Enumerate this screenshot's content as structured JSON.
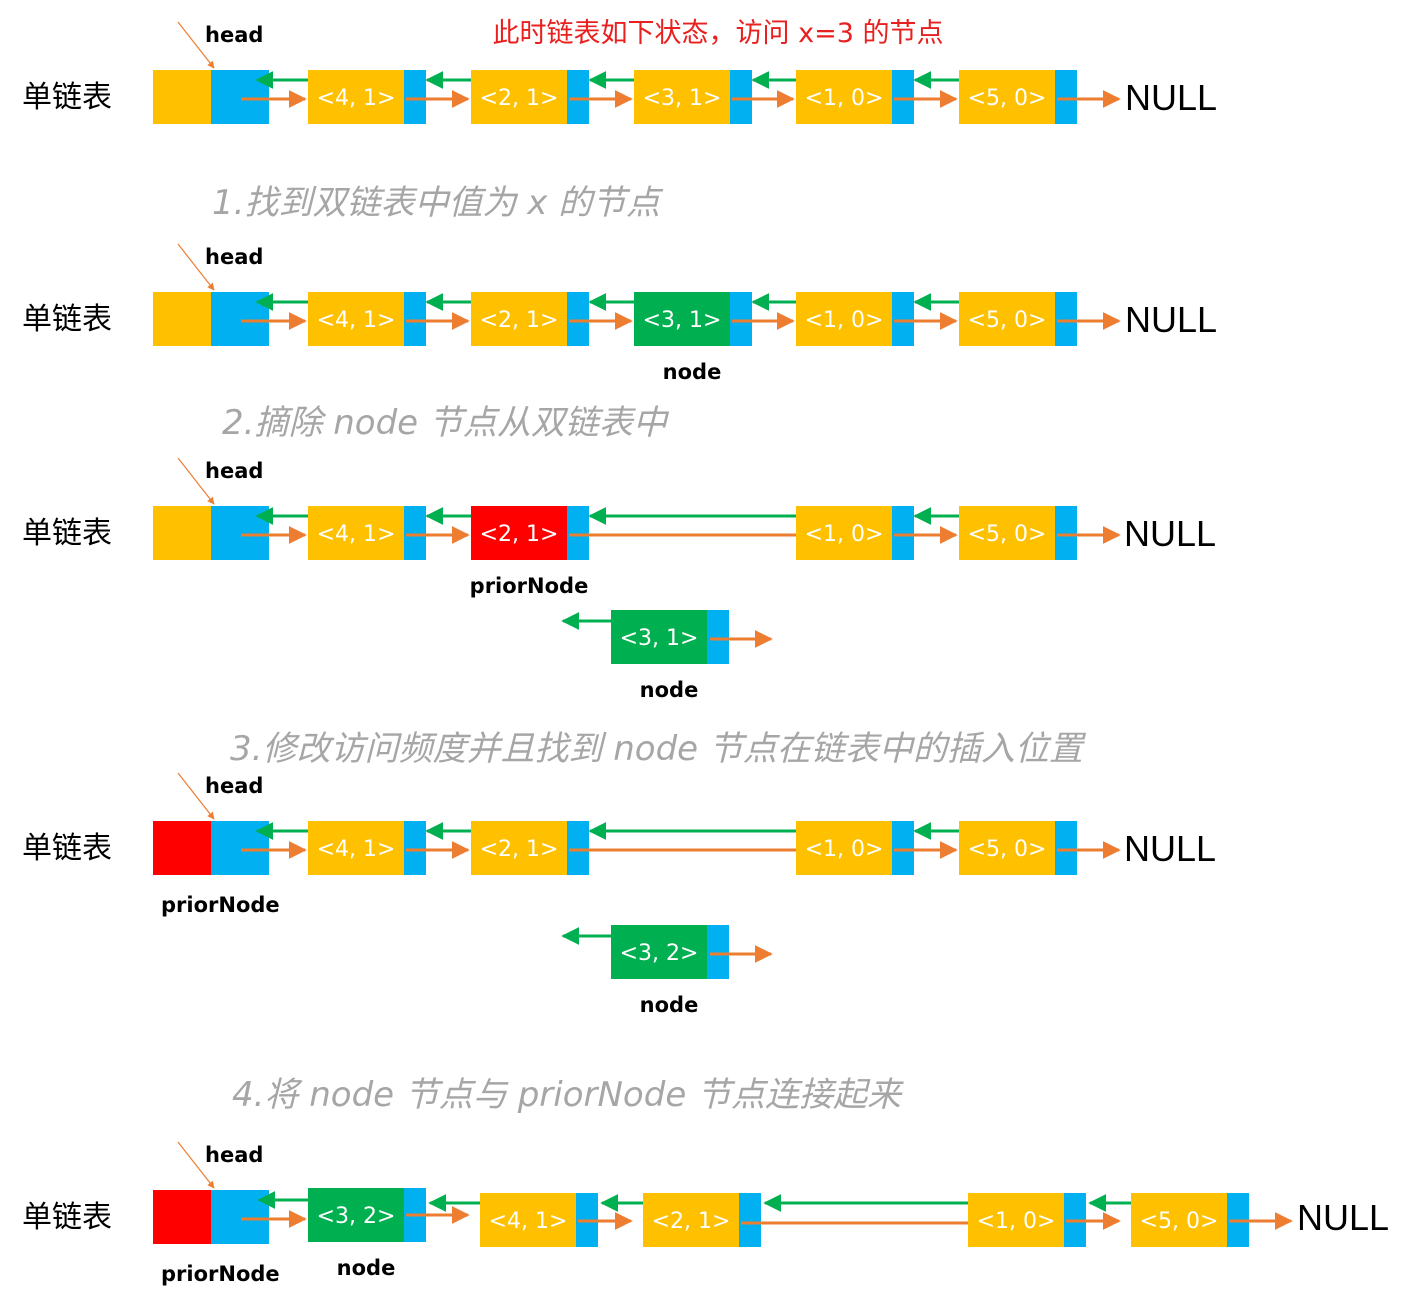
{
  "title": "此时链表如下状态，访问 x=3 的节点",
  "colors": {
    "yellow": "#ffc000",
    "blue": "#00b0f0",
    "green": "#00b050",
    "red": "#ff0000",
    "arrow_next": "#ed7d31",
    "arrow_prev": "#00b050",
    "title": "#e8201f",
    "step": "#a6a6a6"
  },
  "list_label": "单链表",
  "head_label": "head",
  "null_label": "NULL",
  "steps": [
    "1.找到双链表中值为 x 的节点",
    "2.摘除 node 节点从双链表中",
    "3.修改访问频度并且找到 node 节点在链表中的插入位置",
    "4.将 node 节点与 priorNode 节点连接起来"
  ],
  "rows": [
    {
      "nodes": [
        {
          "text": "<4, 1>",
          "color": "yellow"
        },
        {
          "text": "<2, 1>",
          "color": "yellow"
        },
        {
          "text": "<3, 1>",
          "color": "yellow"
        },
        {
          "text": "<1, 0>",
          "color": "yellow"
        },
        {
          "text": "<5, 0>",
          "color": "yellow"
        }
      ]
    },
    {
      "nodes": [
        {
          "text": "<4, 1>",
          "color": "yellow"
        },
        {
          "text": "<2, 1>",
          "color": "yellow"
        },
        {
          "text": "<3, 1>",
          "color": "green",
          "label": "node"
        },
        {
          "text": "<1, 0>",
          "color": "yellow"
        },
        {
          "text": "<5, 0>",
          "color": "yellow"
        }
      ]
    },
    {
      "nodes": [
        {
          "text": "<4, 1>",
          "color": "yellow"
        },
        {
          "text": "<2, 1>",
          "color": "red",
          "label": "priorNode"
        },
        {
          "text": "<1, 0>",
          "color": "yellow"
        },
        {
          "text": "<5, 0>",
          "color": "yellow"
        }
      ],
      "detached": {
        "text": "<3, 1>",
        "color": "green",
        "label": "node"
      }
    },
    {
      "head_color": "red",
      "head_note": "priorNode",
      "nodes": [
        {
          "text": "<4, 1>",
          "color": "yellow"
        },
        {
          "text": "<2, 1>",
          "color": "yellow"
        },
        {
          "text": "<1, 0>",
          "color": "yellow"
        },
        {
          "text": "<5, 0>",
          "color": "yellow"
        }
      ],
      "detached": {
        "text": "<3, 2>",
        "color": "green",
        "label": "node"
      }
    },
    {
      "head_color": "red",
      "head_note": "priorNode",
      "nodes": [
        {
          "text": "<3, 2>",
          "color": "green",
          "label": "node"
        },
        {
          "text": "<4, 1>",
          "color": "yellow"
        },
        {
          "text": "<2, 1>",
          "color": "yellow"
        },
        {
          "text": "<1, 0>",
          "color": "yellow"
        },
        {
          "text": "<5, 0>",
          "color": "yellow"
        }
      ]
    }
  ]
}
